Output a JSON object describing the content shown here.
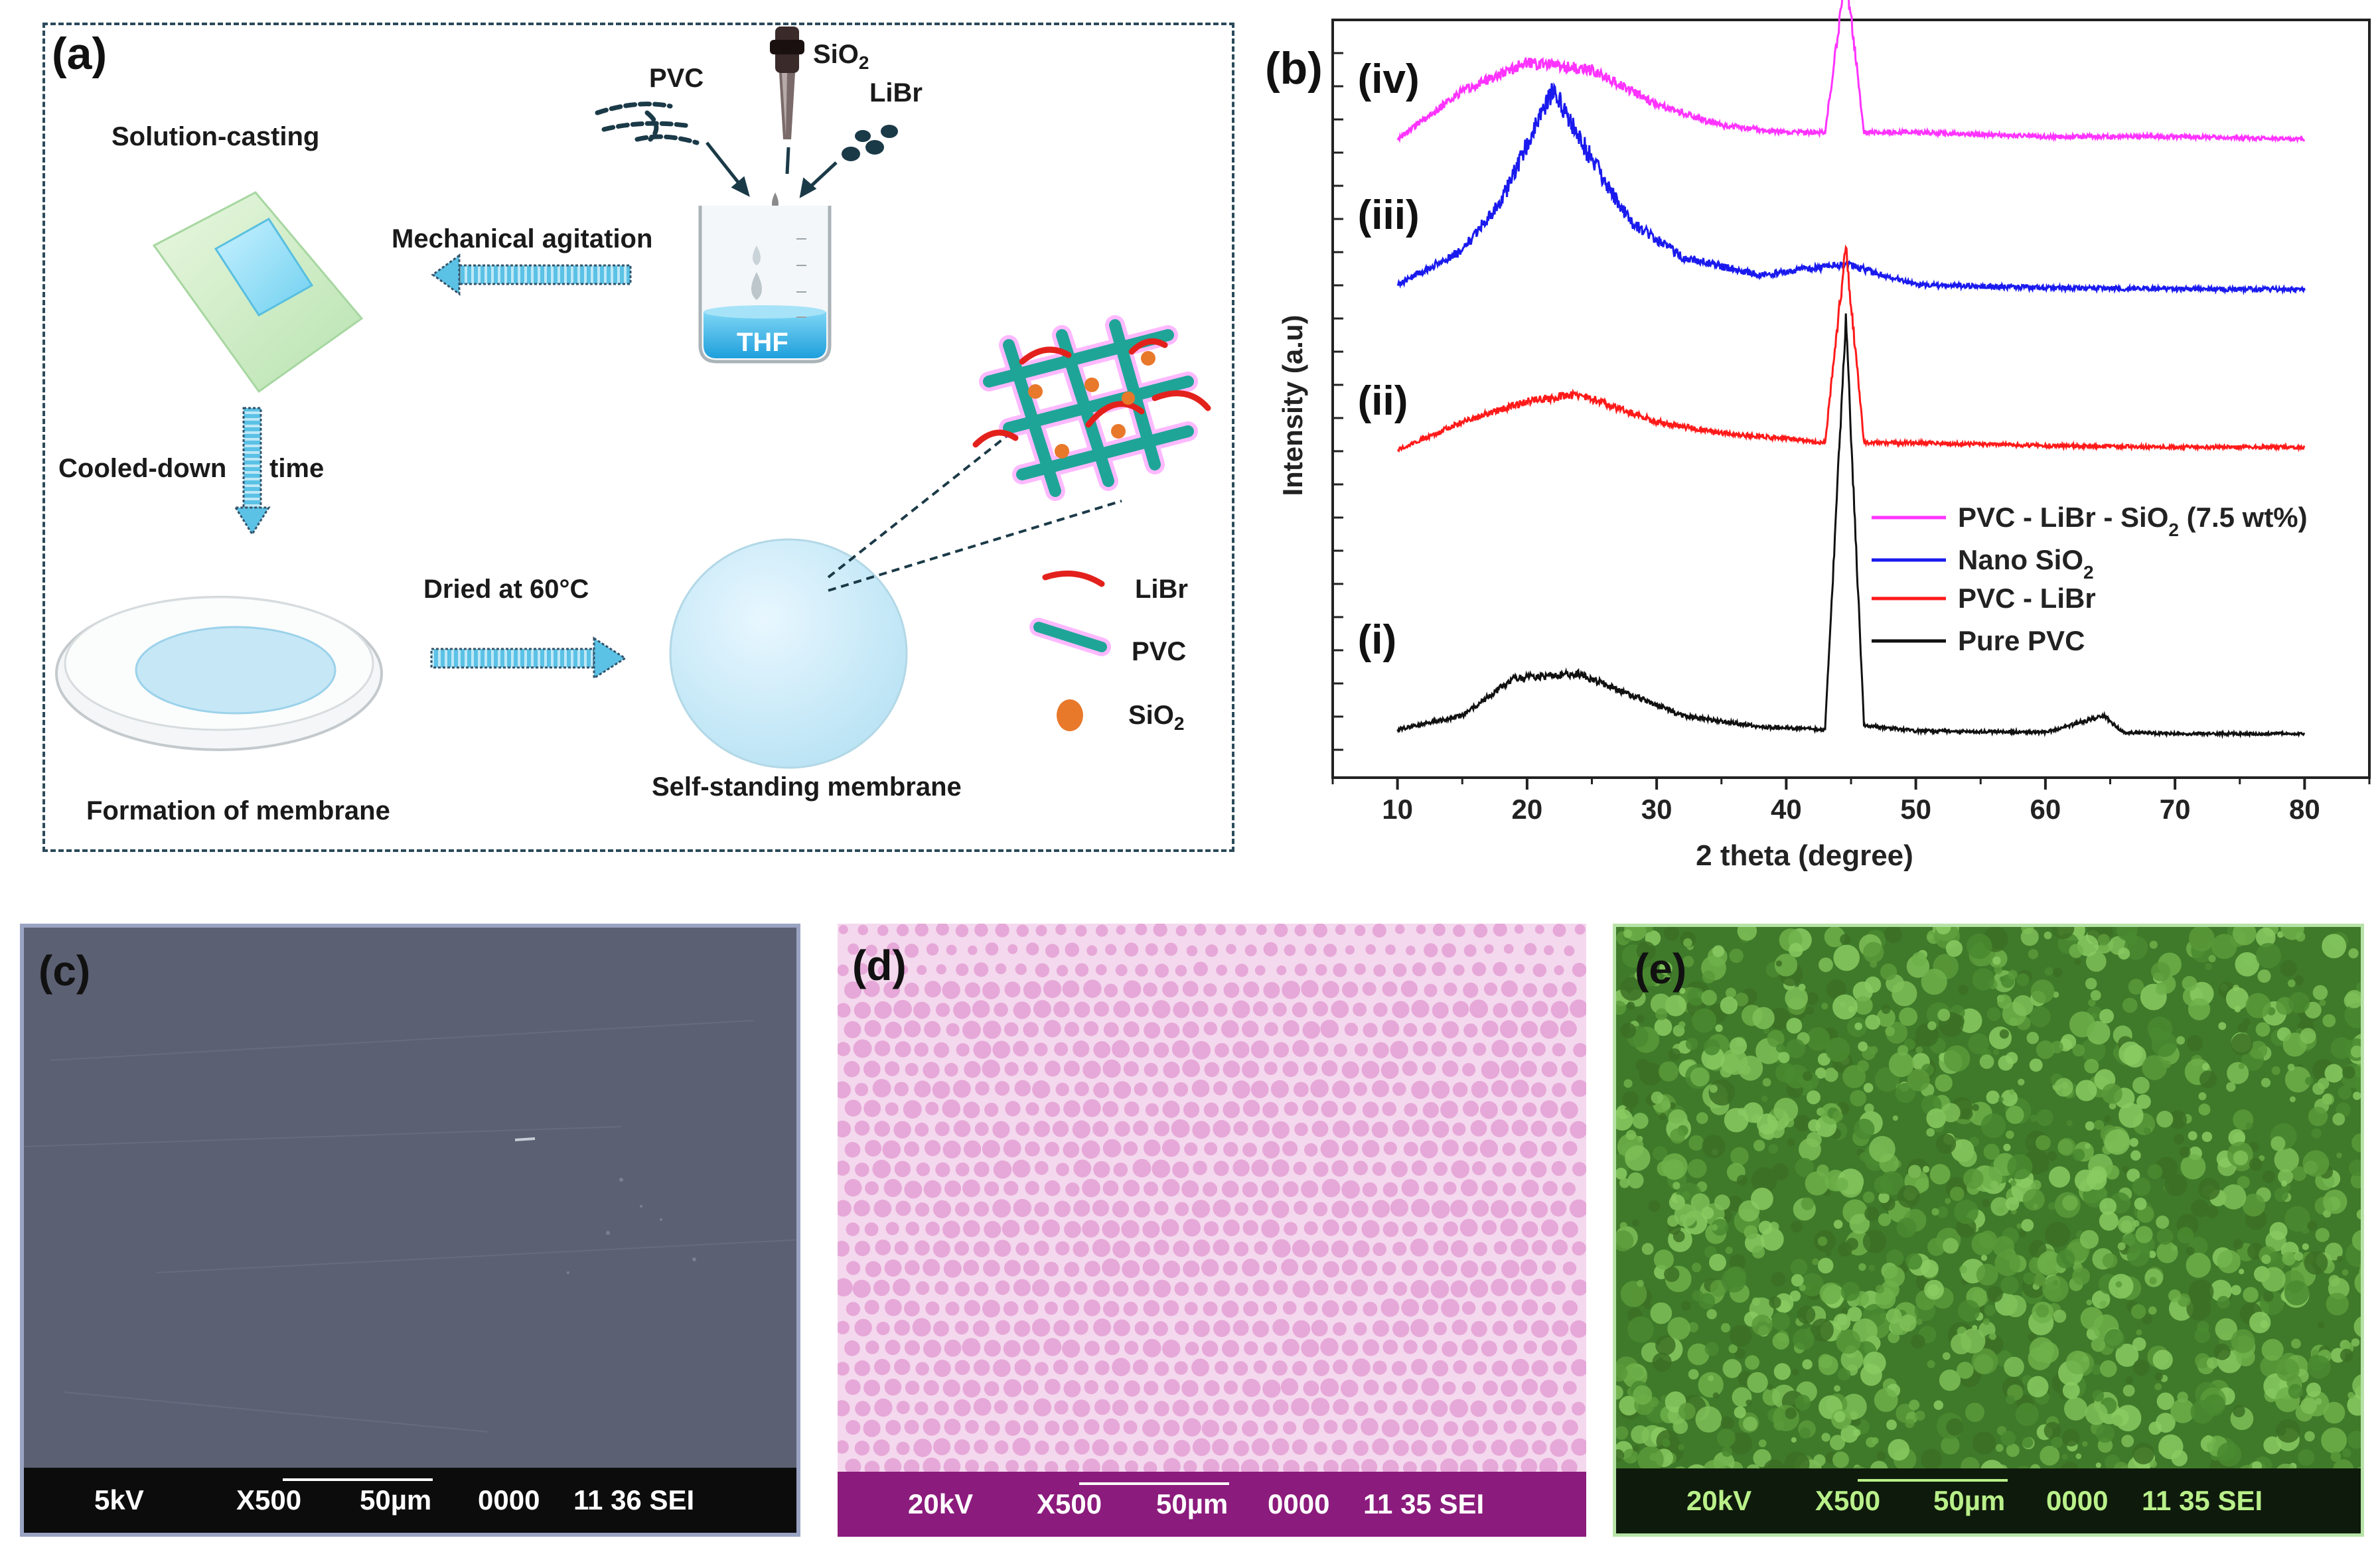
{
  "panel_a": {
    "label": "(a)",
    "solution_casting": "Solution-casting",
    "mechanical_agitation": "Mechanical agitation",
    "pvc": "PVC",
    "sio2_base": "SiO",
    "sio2_sub": "2",
    "libr": "LiBr",
    "thf": "THF",
    "cooled_down": "Cooled-down",
    "time": "time",
    "dried": "Dried at 60°C",
    "formation": "Formation of membrane",
    "self_standing": "Self-standing membrane",
    "legend": {
      "libr": "LiBr",
      "pvc": "PVC",
      "sio2_base": "SiO",
      "sio2_sub": "2"
    },
    "colors": {
      "arrow": "#5bc2e6",
      "libr": "#e3211c",
      "pvc": "#1fa597",
      "sio2": "#e8782a"
    }
  },
  "panel_b": {
    "label": "(b)",
    "chart_data": {
      "type": "line",
      "xlabel": "2 theta (degree)",
      "ylabel": "Intensity (a.u)",
      "xlim": [
        5,
        85
      ],
      "x_ticks": [
        10,
        20,
        30,
        40,
        50,
        60,
        70,
        80
      ],
      "y_ticks_shown": false,
      "stacked_offset": true,
      "series": [
        {
          "name": "PVC - LiBr - SiO2 (7.5 wt%)",
          "tag": "(iv)",
          "color": "#ff33ff",
          "baseline": 3.0,
          "x": [
            10,
            15,
            20,
            25,
            30,
            35,
            40,
            43,
            44.6,
            46,
            50,
            60,
            70,
            80
          ],
          "y": [
            0.0,
            0.35,
            0.55,
            0.5,
            0.25,
            0.1,
            0.05,
            0.05,
            1.2,
            0.05,
            0.05,
            0.02,
            0.02,
            0.0
          ]
        },
        {
          "name": "Nano SiO2",
          "tag": "(iii)",
          "color": "#1a1aee",
          "baseline": 2.0,
          "x": [
            10,
            15,
            18,
            22,
            25,
            28,
            32,
            38,
            44.6,
            50,
            60,
            70,
            80
          ],
          "y": [
            0.05,
            0.3,
            0.65,
            1.45,
            0.95,
            0.5,
            0.25,
            0.12,
            0.2,
            0.05,
            0.03,
            0.02,
            0.02
          ]
        },
        {
          "name": "PVC - LiBr",
          "tag": "(ii)",
          "color": "#ff1a1a",
          "baseline": 1.0,
          "x": [
            10,
            15,
            20,
            24,
            30,
            35,
            40,
            43,
            44.6,
            46,
            50,
            60,
            70,
            80
          ],
          "y": [
            0.0,
            0.2,
            0.35,
            0.4,
            0.2,
            0.12,
            0.08,
            0.05,
            1.45,
            0.05,
            0.05,
            0.03,
            0.02,
            0.02
          ]
        },
        {
          "name": "Pure PVC",
          "tag": "(i)",
          "color": "#111111",
          "baseline": 0.0,
          "x": [
            10,
            15,
            19,
            24,
            28,
            32,
            38,
            43,
            44.6,
            46,
            50,
            60,
            64.5,
            66,
            70,
            80
          ],
          "y": [
            0.05,
            0.15,
            0.42,
            0.45,
            0.3,
            0.15,
            0.07,
            0.05,
            3.0,
            0.08,
            0.04,
            0.03,
            0.15,
            0.03,
            0.02,
            0.02
          ]
        }
      ],
      "legend": [
        {
          "base": "PVC - LiBr - SiO",
          "sub": "2",
          "tail": " (7.5 wt%)",
          "color": "#ff33ff"
        },
        {
          "base": "Nano SiO",
          "sub": "2",
          "tail": "",
          "color": "#1a1aee"
        },
        {
          "base": "PVC - LiBr",
          "sub": "",
          "tail": "",
          "color": "#ff1a1a"
        },
        {
          "base": "Pure PVC",
          "sub": "",
          "tail": "",
          "color": "#111111"
        }
      ],
      "legend_position": "middle-right"
    }
  },
  "panel_c": {
    "label": "(c)",
    "kv": "5kV",
    "mag": "X500",
    "scale": "50µm",
    "code": "0000",
    "sei": "11 36 SEI",
    "colors": {
      "image": "#5b6073",
      "bar": "#0c0c0c",
      "text": "#ffffff"
    }
  },
  "panel_d": {
    "label": "(d)",
    "kv": "20kV",
    "mag": "X500",
    "scale": "50µm",
    "code": "0000",
    "sei": "11 35 SEI",
    "colors": {
      "image": "#e6a8d8",
      "bar": "#8b1b7c",
      "text": "#ffffff"
    }
  },
  "panel_e": {
    "label": "(e)",
    "kv": "20kV",
    "mag": "X500",
    "scale": "50µm",
    "code": "0000",
    "sei": "11 35 SEI",
    "colors": {
      "image": "#5a9a3a",
      "bar": "#0e1a0b",
      "text": "#b9f08a"
    }
  }
}
